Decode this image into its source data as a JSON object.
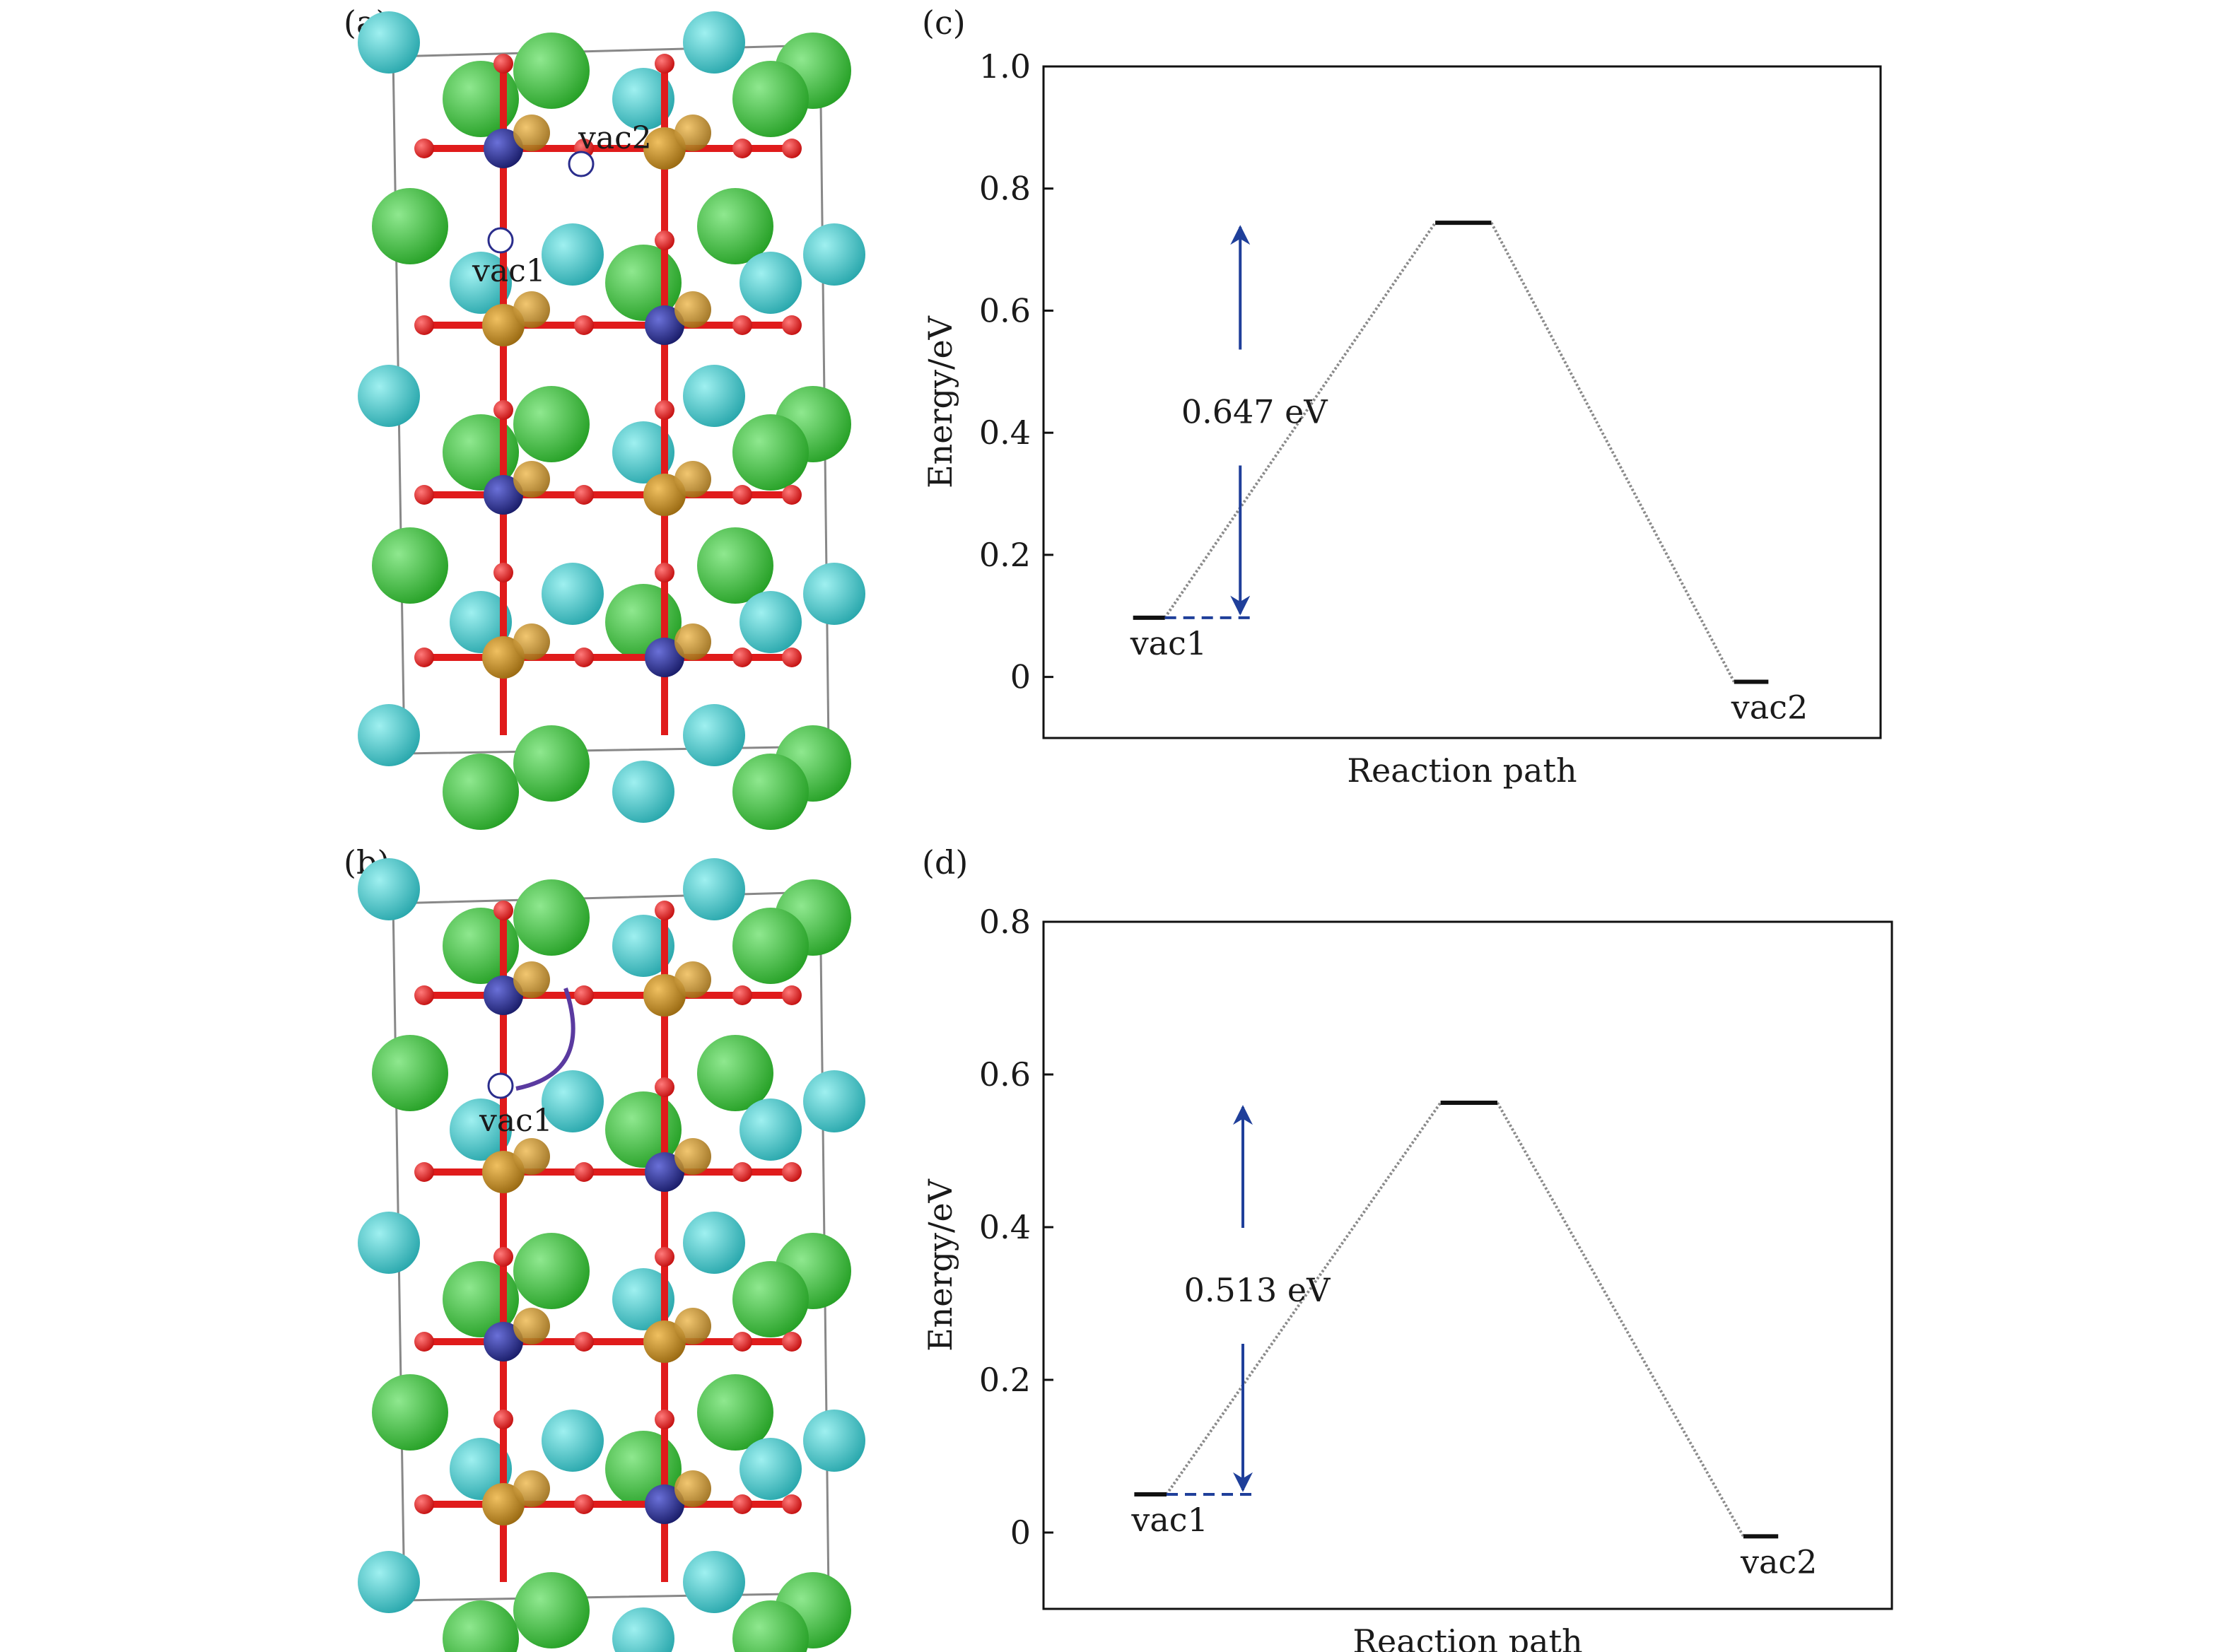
{
  "colors": {
    "la": "#3cc6c6",
    "sr": "#3fbf3f",
    "oxygen": "#e01b1b",
    "fe": "#c28a1e",
    "dopant": "#2a2d8c",
    "vacancy": "#ffffff",
    "arrow": "#1f3f9a",
    "path": "#8a8a8a",
    "level": "#111111"
  },
  "panels": {
    "a": {
      "label": "(a)",
      "vac1": "vac1",
      "vac2": "vac2"
    },
    "b": {
      "label": "(b)",
      "vac1": "vac1"
    }
  },
  "chart_data": [
    {
      "panel_label": "(c)",
      "type": "line",
      "xlabel": "Reaction path",
      "ylabel": "Energy/eV",
      "ylim": [
        -0.1,
        1.0
      ],
      "yticks": [
        "0",
        "0.2",
        "0.4",
        "0.6",
        "0.8",
        "1.0"
      ],
      "ytick_values": [
        0,
        0.2,
        0.4,
        0.6,
        0.8,
        1.0
      ],
      "states": [
        {
          "label": "vac1",
          "energy": 0.097
        },
        {
          "label": "",
          "energy": 0.744
        },
        {
          "label": "vac2",
          "energy": -0.008
        }
      ],
      "barrier": {
        "label": "0.647 eV",
        "value": 0.647
      }
    },
    {
      "panel_label": "(d)",
      "type": "line",
      "xlabel": "Reaction path",
      "ylabel": "Energy/eV",
      "ylim": [
        -0.1,
        0.8
      ],
      "yticks": [
        "0",
        "0.2",
        "0.4",
        "0.6",
        "0.8"
      ],
      "ytick_values": [
        0,
        0.2,
        0.4,
        0.6,
        0.8
      ],
      "states": [
        {
          "label": "vac1",
          "energy": 0.05
        },
        {
          "label": "",
          "energy": 0.563
        },
        {
          "label": "vac2",
          "energy": -0.005
        }
      ],
      "barrier": {
        "label": "0.513 eV",
        "value": 0.513
      }
    }
  ]
}
